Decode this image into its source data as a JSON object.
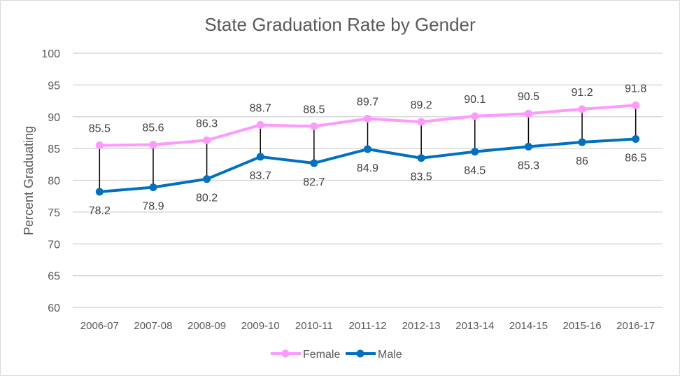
{
  "chart_data": {
    "type": "line",
    "title": "State Graduation Rate by Gender",
    "xlabel": "",
    "ylabel": "Percent Graduating",
    "ylim": [
      60,
      100
    ],
    "yticks": [
      60,
      65,
      70,
      75,
      80,
      85,
      90,
      95,
      100
    ],
    "grid": true,
    "legend": "bottom",
    "categories": [
      "2006-07",
      "2007-08",
      "2008-09",
      "2009-10",
      "2010-11",
      "2011-12",
      "2012-13",
      "2013-14",
      "2014-15",
      "2015-16",
      "2016-17"
    ],
    "series": [
      {
        "name": "Female",
        "color": "#ff99ff",
        "values": [
          85.5,
          85.6,
          86.3,
          88.7,
          88.5,
          89.7,
          89.2,
          90.1,
          90.5,
          91.2,
          91.8
        ]
      },
      {
        "name": "Male",
        "color": "#0070c0",
        "values": [
          78.2,
          78.9,
          80.2,
          83.7,
          82.7,
          84.9,
          83.5,
          84.5,
          85.3,
          86,
          86.5
        ]
      }
    ],
    "drop_lines": true
  }
}
